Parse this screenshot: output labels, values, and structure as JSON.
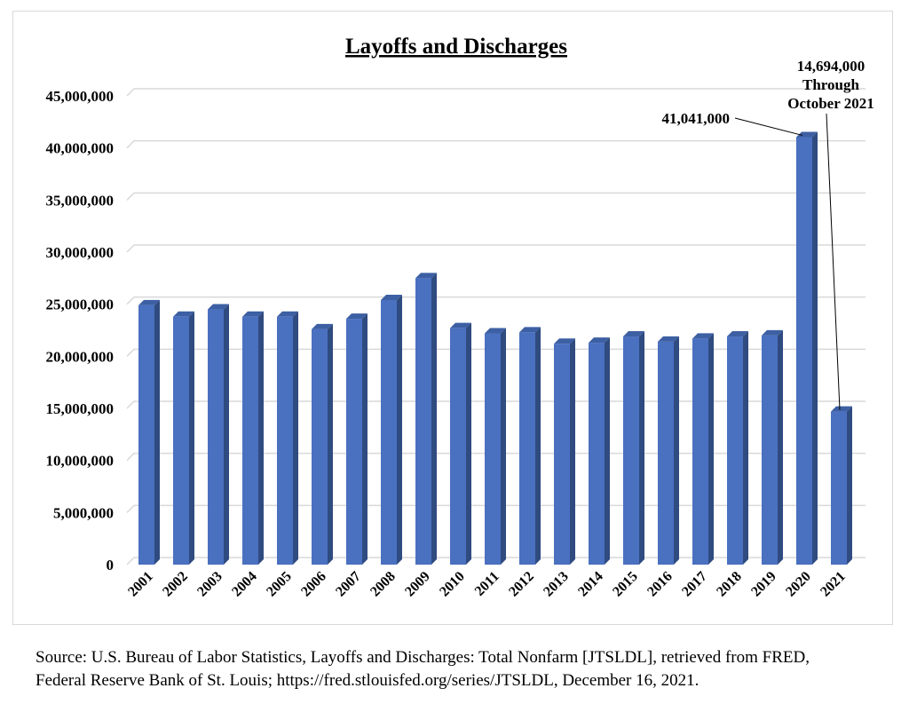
{
  "chart_data": {
    "type": "bar",
    "title": "Layoffs and Discharges",
    "xlabel": "",
    "ylabel": "",
    "ylim": [
      0,
      45000000
    ],
    "yticks": [
      0,
      5000000,
      10000000,
      15000000,
      20000000,
      25000000,
      30000000,
      35000000,
      40000000,
      45000000
    ],
    "ytick_labels": [
      "0",
      "5,000,000",
      "10,000,000",
      "15,000,000",
      "20,000,000",
      "25,000,000",
      "30,000,000",
      "35,000,000",
      "40,000,000",
      "45,000,000"
    ],
    "grid": true,
    "categories": [
      "2001",
      "2002",
      "2003",
      "2004",
      "2005",
      "2006",
      "2007",
      "2008",
      "2009",
      "2010",
      "2011",
      "2012",
      "2013",
      "2014",
      "2015",
      "2016",
      "2017",
      "2018",
      "2019",
      "2020",
      "2021"
    ],
    "values": [
      24900000,
      23800000,
      24500000,
      23800000,
      23800000,
      22600000,
      23600000,
      25400000,
      27500000,
      22700000,
      22200000,
      22300000,
      21200000,
      21300000,
      21900000,
      21400000,
      21700000,
      21900000,
      22000000,
      41041000,
      14694000
    ],
    "bar_color": "#4a70c0",
    "bar_side_color": "#2f4b80",
    "annotations": [
      {
        "category": "2020",
        "lines": [
          "41,041,000"
        ]
      },
      {
        "category": "2021",
        "lines": [
          "14,694,000",
          "Through",
          "October 2021"
        ]
      }
    ]
  },
  "source": {
    "line1": "Source:  U.S. Bureau of Labor Statistics, Layoffs and Discharges: Total Nonfarm [JTSLDL], retrieved from FRED,",
    "line2": "Federal Reserve Bank of St. Louis; https://fred.stlouisfed.org/series/JTSLDL, December 16, 2021."
  }
}
